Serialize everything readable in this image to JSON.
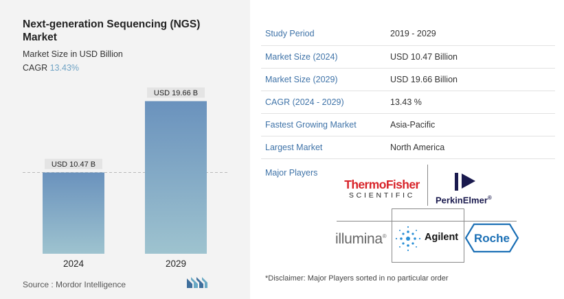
{
  "title": "Next-generation Sequencing (NGS) Market",
  "subtitle": "Market Size in USD Billion",
  "cagr": {
    "label": "CAGR",
    "value": "13.43%"
  },
  "chart_data": {
    "type": "bar",
    "categories": [
      "2024",
      "2029"
    ],
    "values": [
      10.47,
      19.66
    ],
    "value_labels": [
      "USD 10.47 B",
      "USD 19.66 B"
    ],
    "title": "Next-generation Sequencing (NGS) Market",
    "subtitle": "Market Size in USD Billion",
    "xlabel": "",
    "ylabel": "",
    "ylim": [
      0,
      20.5
    ],
    "grid": false,
    "reference_line": 10.47,
    "colors": {
      "bar_top": "#6a92bd",
      "bar_bottom": "#9ec3cf",
      "label_bg": "#e4e4e4"
    }
  },
  "source": "Source :  Mordor Intelligence",
  "info_table": [
    {
      "key": "Study Period",
      "value": "2019 - 2029"
    },
    {
      "key": "Market Size (2024)",
      "value": "USD 10.47 Billion"
    },
    {
      "key": "Market Size (2029)",
      "value": "USD 19.66 Billion"
    },
    {
      "key": "CAGR (2024 - 2029)",
      "value": "13.43 %"
    },
    {
      "key": "Fastest Growing Market",
      "value": "Asia-Pacific"
    },
    {
      "key": "Largest Market",
      "value": "North America"
    }
  ],
  "major_players": {
    "label": "Major Players",
    "logos": {
      "thermo_line1": "ThermoFisher",
      "thermo_line2": "SCIENTIFIC",
      "perkin": "PerkinElmer",
      "perkin_mark": "®",
      "illumina": "illumina",
      "illumina_mark": "®",
      "agilent": "Agilent",
      "roche": "Roche"
    }
  },
  "disclaimer": "*Disclaimer: Major Players sorted in no particular order",
  "colors": {
    "accent": "#3f73a8",
    "cagr": "#6fa3c4",
    "thermo_red": "#d8242a",
    "perkin_navy": "#1a1a4e",
    "roche_blue": "#1a6fb5",
    "agilent_blue": "#2a8fd6"
  }
}
